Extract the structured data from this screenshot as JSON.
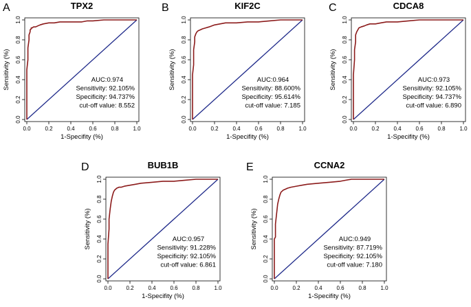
{
  "chart_data": [
    {
      "type": "line",
      "letter": "A",
      "title": "TPX2",
      "xlabel": "1-Specifity (%)",
      "ylabel": "Sensitivity (%)",
      "xlim": [
        0,
        1
      ],
      "ylim": [
        0,
        1
      ],
      "xticks": [
        "0.0",
        "0.2",
        "0.4",
        "0.6",
        "0.8",
        "1.0"
      ],
      "yticks": [
        "0.0",
        "0.2",
        "0.4",
        "0.6",
        "0.8",
        "1.0"
      ],
      "stats": [
        "AUC:0.974",
        "Sensitivity: 92.105%",
        "Specificity: 94.737%",
        "cut-off value: 8.552"
      ],
      "roc": {
        "x": [
          0,
          0,
          0.01,
          0.01,
          0.02,
          0.02,
          0.03,
          0.03,
          0.04,
          0.04,
          0.05,
          0.06,
          0.08,
          0.1,
          0.12,
          0.15,
          0.2,
          0.25,
          0.3,
          0.4,
          0.5,
          0.55,
          0.6,
          0.7,
          0.8,
          1.0
        ],
        "y": [
          0,
          0.5,
          0.6,
          0.72,
          0.8,
          0.85,
          0.88,
          0.9,
          0.91,
          0.92,
          0.92,
          0.93,
          0.93,
          0.94,
          0.95,
          0.96,
          0.97,
          0.97,
          0.98,
          0.98,
          0.98,
          0.99,
          0.99,
          1.0,
          1.0,
          1.0
        ]
      },
      "diagonal": {
        "x": [
          0,
          1
        ],
        "y": [
          0,
          1
        ]
      }
    },
    {
      "type": "line",
      "letter": "B",
      "title": "KIF2C",
      "xlabel": "1-Specifity (%)",
      "ylabel": "Sensitivity (%)",
      "xlim": [
        0,
        1
      ],
      "ylim": [
        0,
        1
      ],
      "xticks": [
        "0.0",
        "0.2",
        "0.4",
        "0.6",
        "0.8",
        "1.0"
      ],
      "yticks": [
        "0.0",
        "0.2",
        "0.4",
        "0.6",
        "0.8",
        "1.0"
      ],
      "stats": [
        "AUC:0.964",
        "Sensitivity: 88.600%",
        "Specificity: 95.614%",
        "cut-off value: 7.185"
      ],
      "roc": {
        "x": [
          0,
          0,
          0.01,
          0.01,
          0.02,
          0.02,
          0.03,
          0.04,
          0.05,
          0.07,
          0.09,
          0.12,
          0.15,
          0.2,
          0.25,
          0.3,
          0.4,
          0.5,
          0.6,
          0.7,
          0.8,
          0.9,
          1.0
        ],
        "y": [
          0,
          0.45,
          0.55,
          0.7,
          0.78,
          0.83,
          0.86,
          0.88,
          0.89,
          0.9,
          0.91,
          0.92,
          0.93,
          0.95,
          0.96,
          0.97,
          0.97,
          0.98,
          0.98,
          0.99,
          1.0,
          1.0,
          1.0
        ]
      },
      "diagonal": {
        "x": [
          0,
          1
        ],
        "y": [
          0,
          1
        ]
      }
    },
    {
      "type": "line",
      "letter": "C",
      "title": "CDCA8",
      "xlabel": "1-Specifity (%)",
      "ylabel": "Sensitivity (%)",
      "xlim": [
        0,
        1
      ],
      "ylim": [
        0,
        1
      ],
      "xticks": [
        "0.0",
        "0.2",
        "0.4",
        "0.6",
        "0.8",
        "1.0"
      ],
      "yticks": [
        "0.0",
        "0.2",
        "0.4",
        "0.6",
        "0.8",
        "1.0"
      ],
      "stats": [
        "AUC:0.973",
        "Sensitivity: 92.105%",
        "Specificity: 94.737%",
        "cut-off value: 6.890"
      ],
      "roc": {
        "x": [
          0,
          0,
          0.01,
          0.01,
          0.02,
          0.02,
          0.03,
          0.04,
          0.05,
          0.07,
          0.1,
          0.12,
          0.15,
          0.2,
          0.25,
          0.3,
          0.4,
          0.5,
          0.6,
          0.8,
          1.0
        ],
        "y": [
          0,
          0.45,
          0.6,
          0.7,
          0.78,
          0.85,
          0.88,
          0.9,
          0.92,
          0.93,
          0.94,
          0.95,
          0.96,
          0.96,
          0.97,
          0.98,
          0.98,
          0.99,
          1.0,
          1.0,
          1.0
        ]
      },
      "diagonal": {
        "x": [
          0,
          1
        ],
        "y": [
          0,
          1
        ]
      }
    },
    {
      "type": "line",
      "letter": "D",
      "title": "BUB1B",
      "xlabel": "1-Specifity (%)",
      "ylabel": "Sensitivity (%)",
      "xlim": [
        0,
        1
      ],
      "ylim": [
        0,
        1
      ],
      "xticks": [
        "0.0",
        "0.2",
        "0.4",
        "0.6",
        "0.8",
        "1.0"
      ],
      "yticks": [
        "0.0",
        "0.2",
        "0.4",
        "0.6",
        "0.8",
        "1.0"
      ],
      "stats": [
        "AUC:0.957",
        "Sensitivity: 91.228%",
        "Specificity: 92.105%",
        "cut-off value: 6.861"
      ],
      "roc": {
        "x": [
          0,
          0,
          0.01,
          0.01,
          0.02,
          0.03,
          0.04,
          0.05,
          0.06,
          0.08,
          0.1,
          0.12,
          0.15,
          0.2,
          0.25,
          0.3,
          0.4,
          0.5,
          0.6,
          0.7,
          0.8,
          0.9,
          1.0
        ],
        "y": [
          0,
          0.35,
          0.5,
          0.6,
          0.7,
          0.78,
          0.83,
          0.87,
          0.89,
          0.91,
          0.92,
          0.92,
          0.93,
          0.94,
          0.95,
          0.96,
          0.97,
          0.98,
          0.98,
          0.99,
          1.0,
          1.0,
          1.0
        ]
      },
      "diagonal": {
        "x": [
          0,
          1
        ],
        "y": [
          0,
          1
        ]
      }
    },
    {
      "type": "line",
      "letter": "E",
      "title": "CCNA2",
      "xlabel": "1-Specifity (%)",
      "ylabel": "Sensitivity (%)",
      "xlim": [
        0,
        1
      ],
      "ylim": [
        0,
        1
      ],
      "xticks": [
        "0.0",
        "0.2",
        "0.4",
        "0.6",
        "0.8",
        "1.0"
      ],
      "yticks": [
        "0.0",
        "0.2",
        "0.4",
        "0.6",
        "0.8",
        "1.0"
      ],
      "stats": [
        "AUC:0.949",
        "Sensitivity: 87.719%",
        "Specificity: 92.105%",
        "cut-off value: 7.180"
      ],
      "roc": {
        "x": [
          0,
          0,
          0.01,
          0.01,
          0.02,
          0.03,
          0.04,
          0.05,
          0.06,
          0.08,
          0.1,
          0.12,
          0.15,
          0.2,
          0.25,
          0.3,
          0.4,
          0.5,
          0.6,
          0.65,
          0.7,
          0.8,
          1.0
        ],
        "y": [
          0,
          0.4,
          0.42,
          0.55,
          0.65,
          0.75,
          0.8,
          0.84,
          0.87,
          0.89,
          0.9,
          0.91,
          0.92,
          0.93,
          0.94,
          0.95,
          0.96,
          0.97,
          0.98,
          0.99,
          1.0,
          1.0,
          1.0
        ]
      },
      "diagonal": {
        "x": [
          0,
          1
        ],
        "y": [
          0,
          1
        ]
      }
    }
  ]
}
